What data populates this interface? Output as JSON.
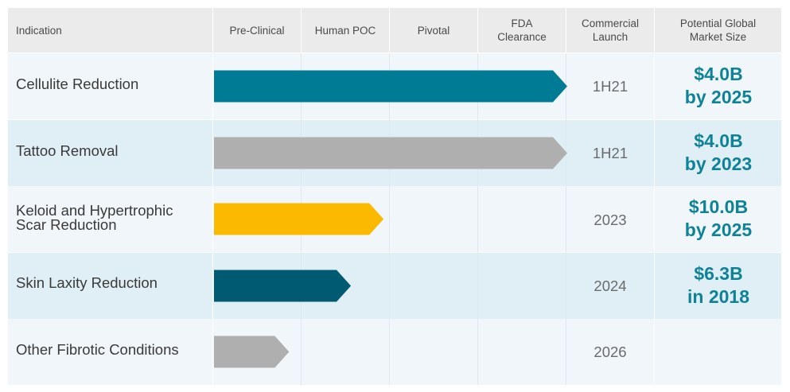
{
  "header": {
    "indication": "Indication",
    "stages": [
      "Pre-Clinical",
      "Human POC",
      "Pivotal",
      "FDA\nClearance",
      "Commercial\nLaunch"
    ],
    "market": "Potential Global\nMarket Size"
  },
  "chart_data": {
    "type": "bar",
    "orientation": "horizontal",
    "stages": [
      "Pre-Clinical",
      "Human POC",
      "Pivotal",
      "FDA Clearance"
    ],
    "rows": [
      {
        "indication": "Cellulite Reduction",
        "progress_stages": 4.0,
        "launch": "1H21",
        "market": "$4.0B\nby 2025",
        "color": "#007b96"
      },
      {
        "indication": "Tattoo Removal",
        "progress_stages": 4.0,
        "launch": "1H21",
        "market": "$4.0B\nby 2023",
        "color": "#afafaf"
      },
      {
        "indication": "Keloid and Hypertrophic\nScar Reduction",
        "progress_stages": 1.92,
        "launch": "2023",
        "market": "$10.0B\nby 2025",
        "color": "#fbb900"
      },
      {
        "indication": "Skin Laxity Reduction",
        "progress_stages": 1.55,
        "launch": "2024",
        "market": "$6.3B\nin 2018",
        "color": "#005a71"
      },
      {
        "indication": "Other Fibrotic Conditions",
        "progress_stages": 0.85,
        "launch": "2026",
        "market": "",
        "color": "#afafaf"
      }
    ]
  }
}
